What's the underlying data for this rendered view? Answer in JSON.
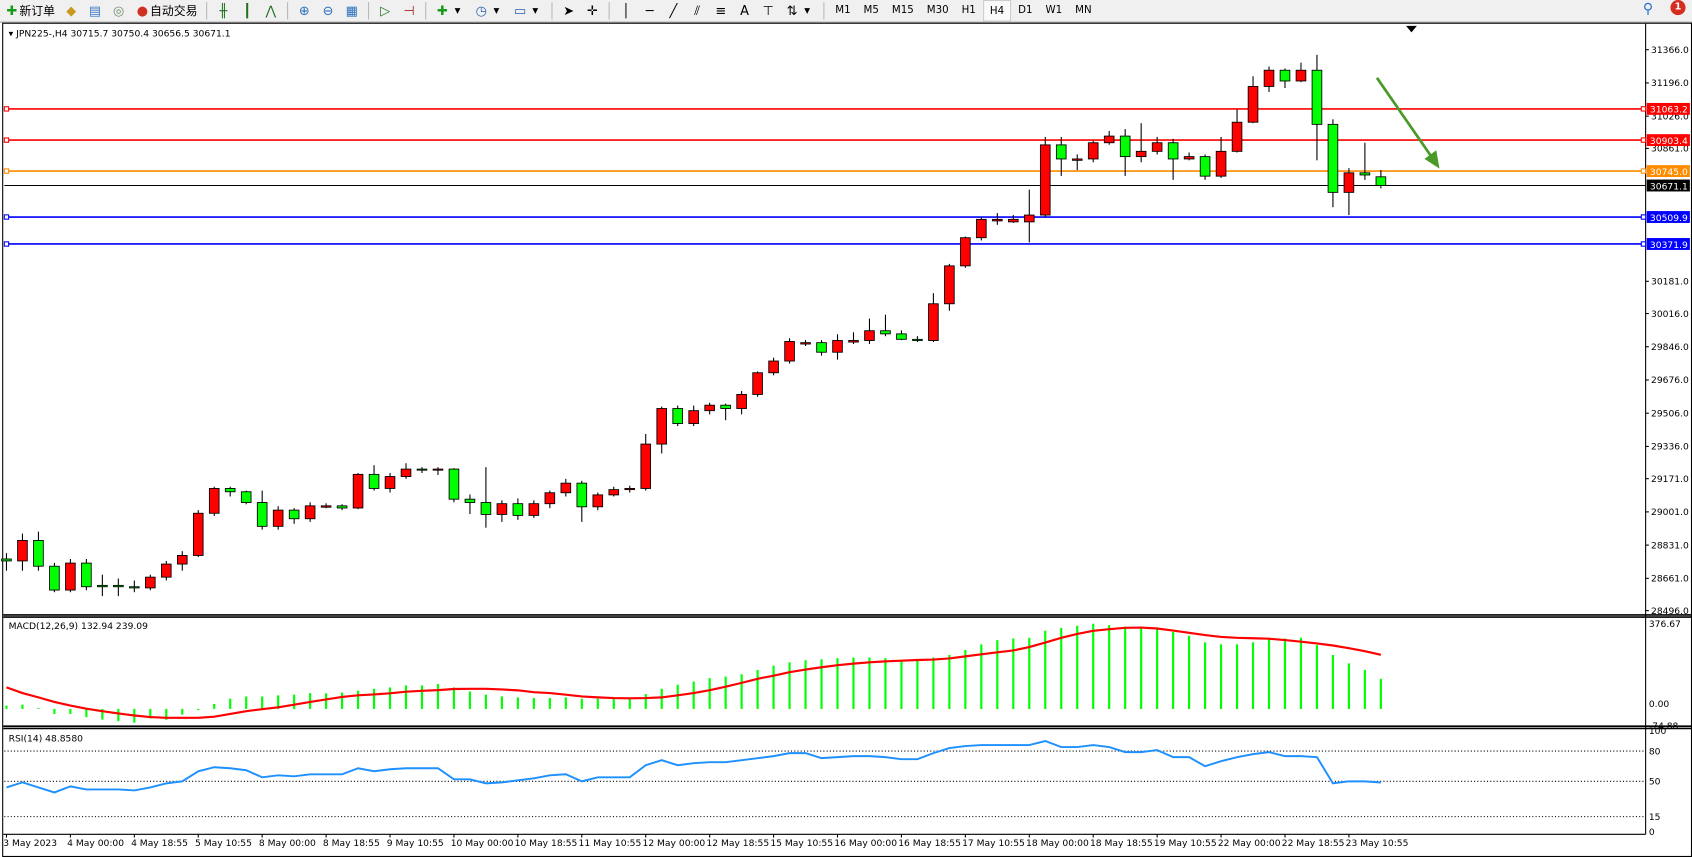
{
  "toolbar": {
    "new_order": "新订单",
    "auto_trading": "自动交易",
    "icons": [
      "new-order-icon",
      "market-watch-icon",
      "data-window-icon",
      "navigator-icon",
      "signals-icon",
      "auto-trading-icon",
      "bar-chart-icon",
      "candlestick-icon",
      "line-chart-icon",
      "zoom-in-icon",
      "zoom-out-icon",
      "tile-windows-icon",
      "auto-scroll-icon",
      "chart-shift-icon",
      "indicators-icon",
      "periods-icon",
      "templates-icon",
      "cursor-icon",
      "crosshair-icon",
      "vertical-line-icon",
      "horizontal-line-icon",
      "trendline-icon",
      "equidistant-channel-icon",
      "fibonacci-icon",
      "text-icon",
      "text-label-icon",
      "arrows-icon"
    ],
    "text_tool": "A",
    "periods": [
      "M1",
      "M5",
      "M15",
      "M30",
      "H1",
      "H4",
      "D1",
      "W1",
      "MN"
    ],
    "active_period": "H4",
    "notification_count": "1"
  },
  "chart": {
    "header": "JPN225-,H4  30715.7 30750.4 30656.5 30671.1",
    "price_labels": [
      "31366.0",
      "31196.0",
      "31026.0",
      "30861.0",
      "30181.0",
      "30016.0",
      "29846.0",
      "29676.0",
      "29506.0",
      "29336.0",
      "29171.0",
      "29001.0",
      "28831.0",
      "28661.0",
      "28496.0"
    ],
    "hlines": [
      {
        "price": 31063.2,
        "label": "31063.2",
        "color": "#ff0000"
      },
      {
        "price": 30903.4,
        "label": "30903.4",
        "color": "#ff0000"
      },
      {
        "price": 30745.0,
        "label": "30745.0",
        "color": "#ff8c00"
      },
      {
        "price": 30671.1,
        "label": "30671.1",
        "color": "#000000"
      },
      {
        "price": 30509.9,
        "label": "30509.9",
        "color": "#0000ff"
      },
      {
        "price": 30371.9,
        "label": "30371.9",
        "color": "#0000ff"
      }
    ],
    "arrow_color": "#4a9a2a",
    "up_color": "#ff0000",
    "down_color": "#00ff00"
  },
  "chart_data": {
    "type": "candlestick",
    "symbol": "JPN225-",
    "timeframe": "H4",
    "ylim": [
      28496,
      31366
    ],
    "candles": [
      [
        28760,
        28790,
        28700,
        28750
      ],
      [
        28750,
        28890,
        28700,
        28855
      ],
      [
        28855,
        28900,
        28700,
        28723
      ],
      [
        28723,
        28740,
        28590,
        28601
      ],
      [
        28601,
        28760,
        28590,
        28739
      ],
      [
        28739,
        28760,
        28600,
        28618
      ],
      [
        28625,
        28680,
        28570,
        28618
      ],
      [
        28625,
        28660,
        28570,
        28618
      ],
      [
        28618,
        28650,
        28590,
        28612
      ],
      [
        28612,
        28680,
        28600,
        28667
      ],
      [
        28667,
        28750,
        28650,
        28734
      ],
      [
        28734,
        28800,
        28700,
        28778
      ],
      [
        28778,
        29010,
        28770,
        28994
      ],
      [
        28994,
        29130,
        28980,
        29121
      ],
      [
        29121,
        29130,
        29080,
        29104
      ],
      [
        29104,
        29110,
        29040,
        29049
      ],
      [
        29049,
        29110,
        28910,
        28927
      ],
      [
        28927,
        29030,
        28910,
        29010
      ],
      [
        29010,
        29020,
        28940,
        28966
      ],
      [
        28966,
        29050,
        28950,
        29032
      ],
      [
        29025,
        29045,
        29020,
        29032
      ],
      [
        29032,
        29040,
        29010,
        29021
      ],
      [
        29021,
        29200,
        29015,
        29193
      ],
      [
        29193,
        29240,
        29110,
        29121
      ],
      [
        29121,
        29200,
        29100,
        29182
      ],
      [
        29182,
        29250,
        29170,
        29220
      ],
      [
        29220,
        29230,
        29200,
        29215
      ],
      [
        29215,
        29230,
        29190,
        29220
      ],
      [
        29220,
        29225,
        29050,
        29066
      ],
      [
        29066,
        29090,
        28990,
        29049
      ],
      [
        29049,
        29230,
        28920,
        28988
      ],
      [
        28988,
        29060,
        28950,
        29043
      ],
      [
        29043,
        29070,
        28960,
        28983
      ],
      [
        28983,
        29060,
        28970,
        29043
      ],
      [
        29043,
        29110,
        29020,
        29099
      ],
      [
        29099,
        29170,
        29080,
        29148
      ],
      [
        29148,
        29160,
        28950,
        29027
      ],
      [
        29027,
        29100,
        29010,
        29088
      ],
      [
        29088,
        29130,
        29080,
        29115
      ],
      [
        29115,
        29135,
        29100,
        29121
      ],
      [
        29121,
        29400,
        29110,
        29348
      ],
      [
        29348,
        29540,
        29300,
        29530
      ],
      [
        29530,
        29545,
        29440,
        29453
      ],
      [
        29453,
        29545,
        29440,
        29519
      ],
      [
        29519,
        29560,
        29500,
        29547
      ],
      [
        29547,
        29555,
        29470,
        29530
      ],
      [
        29530,
        29620,
        29500,
        29602
      ],
      [
        29602,
        29720,
        29590,
        29713
      ],
      [
        29713,
        29790,
        29700,
        29773
      ],
      [
        29773,
        29890,
        29760,
        29873
      ],
      [
        29860,
        29880,
        29850,
        29867
      ],
      [
        29867,
        29880,
        29800,
        29818
      ],
      [
        29818,
        29910,
        29780,
        29878
      ],
      [
        29870,
        29920,
        29860,
        29878
      ],
      [
        29878,
        29990,
        29860,
        29928
      ],
      [
        29928,
        30010,
        29900,
        29912
      ],
      [
        29912,
        29930,
        29880,
        29884
      ],
      [
        29884,
        29900,
        29870,
        29878
      ],
      [
        29878,
        30120,
        29870,
        30066
      ],
      [
        30066,
        30270,
        30030,
        30260
      ],
      [
        30260,
        30410,
        30250,
        30404
      ],
      [
        30404,
        30510,
        30390,
        30498
      ],
      [
        30490,
        30530,
        30470,
        30498
      ],
      [
        30485,
        30520,
        30480,
        30498
      ],
      [
        30485,
        30650,
        30380,
        30520
      ],
      [
        30520,
        30920,
        30510,
        30879
      ],
      [
        30879,
        30920,
        30720,
        30807
      ],
      [
        30800,
        30830,
        30750,
        30807
      ],
      [
        30807,
        30900,
        30790,
        30890
      ],
      [
        30890,
        30950,
        30880,
        30924
      ],
      [
        30924,
        30960,
        30720,
        30819
      ],
      [
        30819,
        30990,
        30790,
        30846
      ],
      [
        30846,
        30920,
        30830,
        30890
      ],
      [
        30890,
        30910,
        30700,
        30807
      ],
      [
        30807,
        30840,
        30800,
        30819
      ],
      [
        30819,
        30830,
        30700,
        30719
      ],
      [
        30719,
        30920,
        30710,
        30846
      ],
      [
        30846,
        31060,
        30840,
        30995
      ],
      [
        30995,
        31230,
        30990,
        31178
      ],
      [
        31178,
        31280,
        31150,
        31261
      ],
      [
        31261,
        31270,
        31170,
        31206
      ],
      [
        31206,
        31300,
        31200,
        31261
      ],
      [
        31261,
        31340,
        30800,
        30984
      ],
      [
        30984,
        31010,
        30560,
        30636
      ],
      [
        30636,
        30760,
        30520,
        30736
      ],
      [
        30736,
        30890,
        30700,
        30725
      ],
      [
        30715.7,
        30750.4,
        30656.5,
        30671.1
      ]
    ],
    "x_labels": [
      "3 May 2023",
      "4 May 00:00",
      "4 May 18:55",
      "5 May 10:55",
      "8 May 00:00",
      "8 May 18:55",
      "9 May 10:55",
      "10 May 00:00",
      "10 May 18:55",
      "11 May 10:55",
      "12 May 00:00",
      "12 May 18:55",
      "15 May 10:55",
      "16 May 00:00",
      "16 May 18:55",
      "17 May 10:55",
      "18 May 00:00",
      "18 May 18:55",
      "19 May 10:55",
      "22 May 00:00",
      "22 May 18:55",
      "23 May 10:55"
    ],
    "macd": {
      "label": "MACD(12,26,9) 132.94 239.09",
      "axis_labels": [
        "376.67",
        "0.00",
        "-74.88"
      ],
      "histogram": [
        15,
        19,
        4,
        -22,
        -22,
        -36,
        -47,
        -54,
        -61,
        -42,
        -48,
        -25,
        -5,
        22,
        45,
        55,
        55,
        60,
        63,
        70,
        69,
        72,
        80,
        89,
        95,
        104,
        104,
        110,
        95,
        77,
        63,
        55,
        51,
        48,
        48,
        51,
        45,
        45,
        45,
        48,
        66,
        89,
        107,
        121,
        136,
        143,
        153,
        172,
        191,
        206,
        215,
        219,
        224,
        227,
        227,
        224,
        216,
        219,
        227,
        238,
        260,
        285,
        304,
        311,
        314,
        345,
        358,
        367,
        376,
        370,
        363,
        358,
        355,
        340,
        323,
        294,
        285,
        285,
        294,
        311,
        311,
        314,
        282,
        238,
        201,
        172,
        132.94
      ],
      "signal": [
        95,
        70,
        51,
        31,
        15,
        1,
        -10,
        -20,
        -29,
        -36,
        -39,
        -39,
        -39,
        -34,
        -22,
        -10,
        -1,
        7,
        19,
        31,
        42,
        53,
        60,
        64,
        69,
        76,
        80,
        83,
        88,
        89,
        89,
        86,
        82,
        74,
        70,
        63,
        55,
        51,
        48,
        47,
        48,
        51,
        60,
        70,
        83,
        98,
        115,
        133,
        147,
        162,
        174,
        184,
        193,
        200,
        206,
        210,
        213,
        216,
        218,
        223,
        232,
        241,
        250,
        258,
        273,
        293,
        314,
        331,
        345,
        352,
        358,
        359,
        355,
        346,
        336,
        326,
        318,
        314,
        312,
        310,
        304,
        297,
        289,
        280,
        268,
        255,
        239.09
      ],
      "histogram_color": "#00ff00",
      "signal_color": "#ff0000"
    },
    "rsi": {
      "label": "RSI(14) 48.8580",
      "axis_labels": [
        "100",
        "80",
        "50",
        "15",
        "0"
      ],
      "levels": [
        80,
        50,
        15
      ],
      "values": [
        44,
        49,
        44,
        39,
        45,
        42,
        42,
        42,
        41,
        44,
        48,
        50,
        60,
        64,
        63,
        61,
        54,
        56,
        55,
        57,
        57,
        57,
        63,
        60,
        62,
        63,
        63,
        63,
        52,
        52,
        48,
        49,
        51,
        53,
        56,
        57,
        50,
        54,
        54,
        54,
        66,
        71,
        66,
        68,
        69,
        69,
        71,
        73,
        75,
        78,
        78,
        73,
        74,
        75,
        75,
        74,
        72,
        72,
        78,
        83,
        85,
        86,
        86,
        86,
        86,
        90,
        84,
        84,
        86,
        84,
        79,
        79,
        81,
        74,
        74,
        65,
        70,
        74,
        77,
        79,
        75,
        75,
        74,
        48,
        50,
        50,
        48.858
      ],
      "color": "#1e90ff"
    }
  }
}
